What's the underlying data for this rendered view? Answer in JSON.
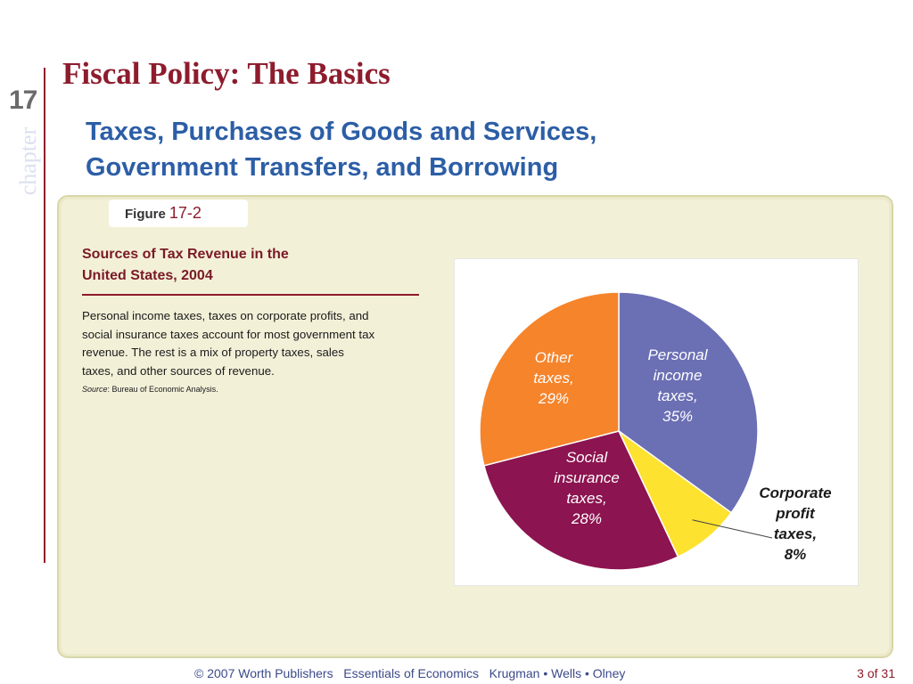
{
  "chapter": {
    "number": "17",
    "word": "chapter"
  },
  "slide": {
    "title": "Fiscal Policy: The Basics",
    "subtitle_lines": [
      "Taxes, Purchases of Goods and Services,",
      "Government Transfers, and Borrowing"
    ]
  },
  "figure": {
    "label_word": "Figure",
    "label_number": "17-2",
    "heading_lines": [
      "Sources of Tax Revenue in the",
      "United States, 2004"
    ],
    "caption_lines": [
      "Personal income taxes, taxes on corporate profits, and",
      "social insurance taxes account for most government tax",
      "revenue. The rest is a mix of property taxes, sales",
      "taxes, and other sources of revenue."
    ],
    "source_label": "Source",
    "source_text": ": Bureau of Economic Analysis."
  },
  "chart_data": {
    "type": "pie",
    "title": "",
    "slices": [
      {
        "label_lines": [
          "Personal",
          "income",
          "taxes,",
          "35%"
        ],
        "value": 35,
        "color": "#6b6fb4",
        "label_color": "#ffffff"
      },
      {
        "label_lines": [
          "Corporate",
          "profit",
          "taxes,",
          "8%"
        ],
        "value": 8,
        "color": "#fde22f",
        "label_color": "#1a1a1a"
      },
      {
        "label_lines": [
          "Social",
          "insurance",
          "taxes,",
          "28%"
        ],
        "value": 28,
        "color": "#8c1450",
        "label_color": "#ffffff"
      },
      {
        "label_lines": [
          "Other",
          "taxes,",
          "29%"
        ],
        "value": 29,
        "color": "#f6842b",
        "label_color": "#ffffff"
      }
    ]
  },
  "footer": {
    "credits": "© 2007 Worth Publishers   Essentials of Economics   Krugman • Wells • Olney",
    "page": "3 of 31"
  },
  "colors": {
    "title": "#8d1c2d",
    "subtitle": "#2c5ea6",
    "panel_bg": "#f3f0d8"
  }
}
